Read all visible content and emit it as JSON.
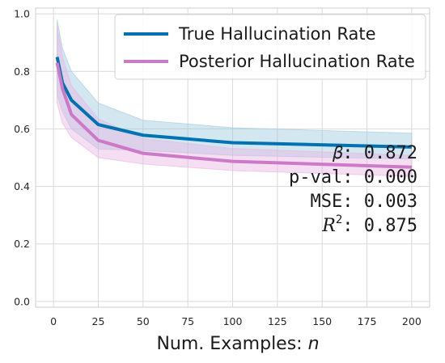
{
  "chart_data": {
    "type": "line",
    "xlabel": "Num. Examples: ",
    "xlabel_var": "n",
    "xlim": [
      -10,
      210
    ],
    "ylim": [
      -0.02,
      1.02
    ],
    "x_ticks": [
      0,
      25,
      50,
      75,
      100,
      125,
      150,
      175,
      200
    ],
    "y_ticks": [
      0.0,
      0.2,
      0.4,
      0.6,
      0.8,
      1.0
    ],
    "grid": true,
    "legend_position": "top-right",
    "series": [
      {
        "name": "True Hallucination Rate",
        "color": "#0072b2",
        "band_color": "#9ecae1",
        "x": [
          2,
          5,
          10,
          25,
          50,
          100,
          200
        ],
        "y": [
          0.85,
          0.76,
          0.7,
          0.615,
          0.578,
          0.552,
          0.537
        ],
        "lower": [
          0.72,
          0.66,
          0.6,
          0.53,
          0.525,
          0.508,
          0.495
        ],
        "upper": [
          0.98,
          0.88,
          0.8,
          0.69,
          0.63,
          0.604,
          0.585
        ]
      },
      {
        "name": "Posterior Hallucination Rate",
        "color": "#cc79c7",
        "band_color": "#e8b4e3",
        "x": [
          2,
          5,
          10,
          25,
          50,
          100,
          200
        ],
        "y": [
          0.83,
          0.74,
          0.65,
          0.56,
          0.515,
          0.487,
          0.467
        ],
        "lower": [
          0.69,
          0.62,
          0.57,
          0.5,
          0.478,
          0.455,
          0.435
        ],
        "upper": [
          0.96,
          0.85,
          0.75,
          0.635,
          0.566,
          0.532,
          0.508
        ]
      }
    ],
    "annotations": {
      "beta": "𝛽: 0.872",
      "pval": "p-val: 0.000",
      "mse": "MSE: 0.003",
      "r2_base": "R",
      "r2_sup": "2",
      "r2_rest": ": 0.875"
    }
  }
}
